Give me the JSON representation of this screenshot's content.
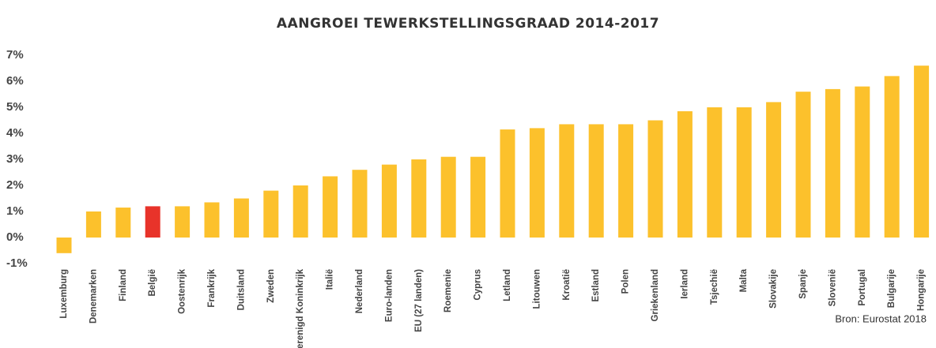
{
  "chart_data": {
    "type": "bar",
    "title": "AANGROEI TEWERKSTELLINGSGRAAD 2014-2017",
    "categories": [
      "Luxemburg",
      "Denemarken",
      "Finland",
      "België",
      "Oostenrijk",
      "Frankrijk",
      "Duitsland",
      "Zweden",
      "Verenigd Koninkrijk",
      "Italië",
      "Nederland",
      "Euro-landen",
      "EU (27 landen)",
      "Roemenie",
      "Cyprus",
      "Letland",
      "Litouwen",
      "Kroatië",
      "Estland",
      "Polen",
      "Griekenland",
      "Ierland",
      "Tsjechië",
      "Malta",
      "Slovakije",
      "Spanje",
      "Slovenië",
      "Portugal",
      "Bulgarije",
      "Hongarije"
    ],
    "values": [
      -0.6,
      1.0,
      1.15,
      1.2,
      1.2,
      1.35,
      1.5,
      1.8,
      2.0,
      2.35,
      2.6,
      2.8,
      3.0,
      3.1,
      3.1,
      4.15,
      4.2,
      4.35,
      4.35,
      4.35,
      4.5,
      4.85,
      5.0,
      5.0,
      5.2,
      5.6,
      5.7,
      5.8,
      6.2,
      6.6
    ],
    "colors": [
      "#fcc12c",
      "#fcc12c",
      "#fcc12c",
      "#e8332a",
      "#fcc12c",
      "#fcc12c",
      "#fcc12c",
      "#fcc12c",
      "#fcc12c",
      "#fcc12c",
      "#fcc12c",
      "#fcc12c",
      "#fcc12c",
      "#fcc12c",
      "#fcc12c",
      "#fcc12c",
      "#fcc12c",
      "#fcc12c",
      "#fcc12c",
      "#fcc12c",
      "#fcc12c",
      "#fcc12c",
      "#fcc12c",
      "#fcc12c",
      "#fcc12c",
      "#fcc12c",
      "#fcc12c",
      "#fcc12c",
      "#fcc12c",
      "#fcc12c"
    ],
    "ylim": [
      -1,
      7
    ],
    "yticks": [
      {
        "value": -1,
        "label": "-1%"
      },
      {
        "value": 0,
        "label": "0%"
      },
      {
        "value": 1,
        "label": "1%"
      },
      {
        "value": 2,
        "label": "2%"
      },
      {
        "value": 3,
        "label": "3%"
      },
      {
        "value": 4,
        "label": "4%"
      },
      {
        "value": 5,
        "label": "5%"
      },
      {
        "value": 6,
        "label": "6%"
      },
      {
        "value": 7,
        "label": "7%"
      }
    ],
    "grid": false,
    "source": "Bron: Eurostat 2018"
  }
}
